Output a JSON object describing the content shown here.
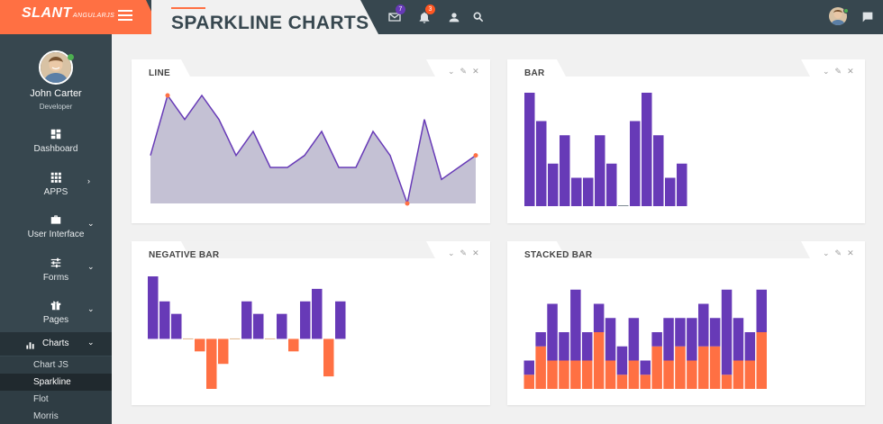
{
  "brand": {
    "name": "SLANT",
    "sub": "ANGULARJS",
    "color": "#ff7043"
  },
  "header": {
    "title": "SPARKLINE CHARTS",
    "messages_badge": "7",
    "notifications_badge": "3",
    "icons": [
      "menu-icon",
      "mail-icon",
      "bell-icon",
      "user-icon",
      "search-icon",
      "chat-icon"
    ]
  },
  "user": {
    "name": "John Carter",
    "role": "Developer"
  },
  "sidebar": {
    "items": [
      {
        "label": "Dashboard",
        "icon": "dashboard-icon",
        "chevron": ""
      },
      {
        "label": "APPS",
        "icon": "apps-grid-icon",
        "chevron": "›"
      },
      {
        "label": "User Interface",
        "icon": "briefcase-icon",
        "chevron": "⌄"
      },
      {
        "label": "Forms",
        "icon": "sliders-icon",
        "chevron": "⌄"
      },
      {
        "label": "Pages",
        "icon": "gift-icon",
        "chevron": "⌄"
      }
    ],
    "active": {
      "label": "Charts",
      "icon": "bar-chart-icon",
      "chevron": "⌄"
    },
    "subitems": [
      "Chart JS",
      "Sparkline",
      "Flot",
      "Morris"
    ],
    "selected_sub": "Sparkline"
  },
  "cards": {
    "line": {
      "title": "LINE"
    },
    "bar": {
      "title": "BAR"
    },
    "negative": {
      "title": "NEGATIVE BAR"
    },
    "stacked": {
      "title": "STACKED BAR"
    },
    "tools": {
      "collapse": "⌄",
      "edit": "✎",
      "close": "✕"
    }
  },
  "colors": {
    "purple": "#673ab7",
    "orange": "#ff7043",
    "line_fill": "#c4c1d4",
    "sidebar": "#37474f"
  },
  "chart_data": [
    {
      "type": "line",
      "title": "LINE",
      "values": [
        5,
        10,
        8,
        10,
        8,
        5,
        7,
        4,
        4,
        5,
        7,
        4,
        4,
        7,
        5,
        1,
        8,
        3,
        4,
        5
      ],
      "ylim": [
        1,
        10
      ],
      "markers": "highest, lowest and last point highlighted in orange"
    },
    {
      "type": "bar",
      "title": "BAR",
      "values": [
        8,
        6,
        3,
        5,
        2,
        2,
        5,
        3,
        0,
        6,
        8,
        5,
        2,
        3
      ],
      "ylim": [
        0,
        8
      ]
    },
    {
      "type": "bar",
      "title": "NEGATIVE BAR",
      "values": [
        5,
        3,
        2,
        0,
        -1,
        -4,
        -2,
        0,
        3,
        2,
        0,
        2,
        -1,
        3,
        4,
        -3,
        3
      ],
      "ylim": [
        -4,
        5
      ]
    },
    {
      "type": "bar",
      "title": "STACKED BAR",
      "stacked": true,
      "series": [
        {
          "values": [
            1,
            3,
            2,
            2,
            2,
            2,
            4,
            2,
            1,
            2,
            1,
            3,
            2,
            3,
            2,
            3,
            3,
            1,
            2,
            2,
            4
          ]
        },
        {
          "values": [
            1,
            1,
            4,
            2,
            5,
            2,
            2,
            3,
            2,
            3,
            1,
            1,
            3,
            2,
            3,
            3,
            2,
            6,
            3,
            2,
            3
          ]
        }
      ],
      "ylim": [
        0,
        8
      ]
    }
  ]
}
